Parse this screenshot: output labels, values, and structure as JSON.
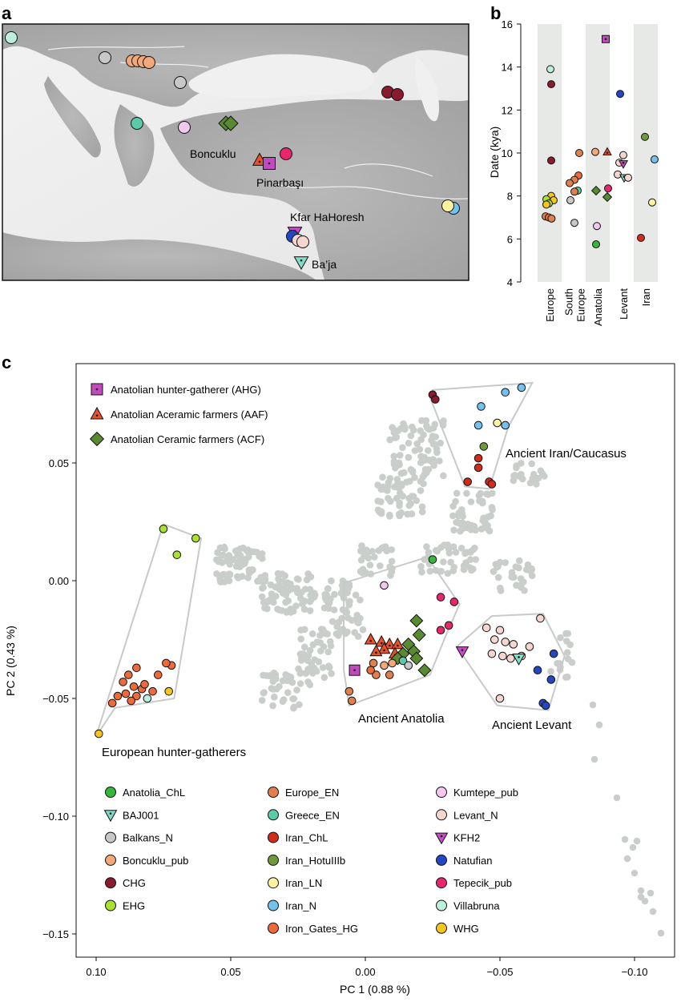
{
  "panels": {
    "a": {
      "label": "a",
      "place_labels": [
        "Boncuklu",
        "Pinarbaşı",
        "Kfar HaHoresh",
        "Ba’ja"
      ]
    },
    "b": {
      "label": "b",
      "ylabel": "Date (kya)",
      "yticks": [
        "4",
        "6",
        "8",
        "10",
        "12",
        "14",
        "16"
      ],
      "regions": [
        "Europe",
        "South Europe",
        "Anatolia",
        "Levant",
        "Iran"
      ]
    },
    "c": {
      "label": "c",
      "xlabel": "PC 1 (0.88 %)",
      "ylabel": "PC 2 (0.43 %)",
      "xticks": [
        "0.10",
        "0.05",
        "0.00",
        "−0.05",
        "−0.10"
      ],
      "yticks": [
        "0.05",
        "0.00",
        "−0.05",
        "−0.10",
        "−0.15"
      ],
      "group_labels": [
        "Ancient Iran/Caucasus",
        "Ancient Anatolia",
        "Ancient Levant",
        "European hunter-gatherers"
      ]
    }
  },
  "legend_top": [
    {
      "label": "Anatolian hunter-gatherer (AHG)",
      "shape": "square",
      "color": "#c24ac0"
    },
    {
      "label": "Anatolian Aceramic farmers (AAF)",
      "shape": "triangle",
      "color": "#e8512a"
    },
    {
      "label": "Anatolian Ceramic farmers (ACF)",
      "shape": "diamond",
      "color": "#5a8a2f"
    }
  ],
  "legend_bottom": [
    {
      "label": "Anatolia_ChL",
      "color": "#35b839",
      "shape": "circle"
    },
    {
      "label": "BAJ001",
      "color": "#7fdcc6",
      "shape": "tri-down"
    },
    {
      "label": "Balkans_N",
      "color": "#c8c8c8",
      "shape": "circle"
    },
    {
      "label": "Boncuklu_pub",
      "color": "#f2a878",
      "shape": "circle"
    },
    {
      "label": "CHG",
      "color": "#8a1a2e",
      "shape": "circle"
    },
    {
      "label": "EHG",
      "color": "#a6e22e",
      "shape": "circle"
    },
    {
      "label": "Europe_EN",
      "color": "#e0804e",
      "shape": "circle"
    },
    {
      "label": "Greece_EN",
      "color": "#5cc9a8",
      "shape": "circle"
    },
    {
      "label": "Iran_ChL",
      "color": "#d02c1c",
      "shape": "circle"
    },
    {
      "label": "Iran_HotuIIIb",
      "color": "#6f9a3c",
      "shape": "circle"
    },
    {
      "label": "Iran_LN",
      "color": "#fff3a0",
      "shape": "circle"
    },
    {
      "label": "Iran_N",
      "color": "#72c2ee",
      "shape": "circle"
    },
    {
      "label": "Iron_Gates_HG",
      "color": "#ee6a3a",
      "shape": "circle"
    },
    {
      "label": "Kumtepe_pub",
      "color": "#f1c7ee",
      "shape": "circle"
    },
    {
      "label": "Levant_N",
      "color": "#f6d7cf",
      "shape": "circle"
    },
    {
      "label": "KFH2",
      "color": "#c94ac6",
      "shape": "tri-down"
    },
    {
      "label": "Natufian",
      "color": "#2347c2",
      "shape": "circle"
    },
    {
      "label": "Tepecik_pub",
      "color": "#e8256d",
      "shape": "circle"
    },
    {
      "label": "Villabruna",
      "color": "#bdf0dc",
      "shape": "circle"
    },
    {
      "label": "WHG",
      "color": "#f5c61c",
      "shape": "circle"
    }
  ],
  "chart_data": [
    {
      "type": "scatter",
      "title": "",
      "ylabel": "Date (kya)",
      "ylim": [
        4,
        16
      ],
      "categories": [
        "Europe",
        "South Europe",
        "Anatolia",
        "Levant",
        "Iran"
      ],
      "points": [
        {
          "region": "Europe",
          "offset": 0.05,
          "date": 13.9,
          "group": "Villabruna"
        },
        {
          "region": "Europe",
          "offset": 0.1,
          "date": 13.2,
          "group": "CHG"
        },
        {
          "region": "Europe",
          "offset": 0.1,
          "date": 9.65,
          "group": "CHG"
        },
        {
          "region": "Europe",
          "offset": 0.1,
          "date": 8.0,
          "group": "WHG"
        },
        {
          "region": "Europe",
          "offset": -0.2,
          "date": 7.85,
          "group": "EHG"
        },
        {
          "region": "Europe",
          "offset": 0.25,
          "date": 7.8,
          "group": "WHG"
        },
        {
          "region": "Europe",
          "offset": -0.05,
          "date": 7.65,
          "group": "EHG"
        },
        {
          "region": "Europe",
          "offset": -0.2,
          "date": 7.6,
          "group": "WHG"
        },
        {
          "region": "Europe",
          "offset": -0.25,
          "date": 7.05,
          "group": "Europe_EN"
        },
        {
          "region": "Europe",
          "offset": -0.05,
          "date": 7.0,
          "group": "Iron_Gates_HG"
        },
        {
          "region": "Europe",
          "offset": 0.12,
          "date": 6.95,
          "group": "Europe_EN"
        },
        {
          "region": "South Europe",
          "offset": 0.3,
          "date": 10.0,
          "group": "Europe_EN"
        },
        {
          "region": "South Europe",
          "offset": 0.25,
          "date": 8.95,
          "group": "Iron_Gates_HG"
        },
        {
          "region": "South Europe",
          "offset": 0.0,
          "date": 8.75,
          "group": "Europe_EN"
        },
        {
          "region": "South Europe",
          "offset": -0.3,
          "date": 8.6,
          "group": "Europe_EN"
        },
        {
          "region": "South Europe",
          "offset": 0.2,
          "date": 8.25,
          "group": "Greece_EN"
        },
        {
          "region": "South Europe",
          "offset": 0.0,
          "date": 8.2,
          "group": "Europe_EN"
        },
        {
          "region": "South Europe",
          "offset": -0.25,
          "date": 7.8,
          "group": "Balkans_N"
        },
        {
          "region": "South Europe",
          "offset": 0.0,
          "date": 6.75,
          "group": "Balkans_N"
        },
        {
          "region": "Anatolia",
          "offset": 0.5,
          "date": 15.3,
          "group": "AHG"
        },
        {
          "region": "Anatolia",
          "offset": -0.15,
          "date": 10.05,
          "group": "Boncuklu_pub"
        },
        {
          "region": "Anatolia",
          "offset": 0.6,
          "date": 10.05,
          "group": "AAF"
        },
        {
          "region": "Anatolia",
          "offset": 0.65,
          "date": 8.35,
          "group": "Tepecik_pub"
        },
        {
          "region": "Anatolia",
          "offset": -0.1,
          "date": 8.25,
          "group": "ACF"
        },
        {
          "region": "Anatolia",
          "offset": 0.6,
          "date": 7.95,
          "group": "ACF"
        },
        {
          "region": "Anatolia",
          "offset": -0.05,
          "date": 6.6,
          "group": "Kumtepe_pub"
        },
        {
          "region": "Anatolia",
          "offset": -0.1,
          "date": 5.75,
          "group": "Anatolia_ChL"
        },
        {
          "region": "Levant",
          "offset": -0.2,
          "date": 12.75,
          "group": "Natufian"
        },
        {
          "region": "Levant",
          "offset": 0.0,
          "date": 9.9,
          "group": "Levant_N"
        },
        {
          "region": "Levant",
          "offset": -0.25,
          "date": 9.55,
          "group": "Levant_N"
        },
        {
          "region": "Levant",
          "offset": 0.0,
          "date": 9.5,
          "group": "KFH2"
        },
        {
          "region": "Levant",
          "offset": -0.35,
          "date": 9.0,
          "group": "Levant_N"
        },
        {
          "region": "Levant",
          "offset": 0.05,
          "date": 8.85,
          "group": "BAJ001"
        },
        {
          "region": "Levant",
          "offset": 0.3,
          "date": 8.85,
          "group": "Levant_N"
        },
        {
          "region": "Iran",
          "offset": -0.05,
          "date": 10.75,
          "group": "Iran_HotuIIIb"
        },
        {
          "region": "Iran",
          "offset": 0.55,
          "date": 9.7,
          "group": "Iran_N"
        },
        {
          "region": "Iran",
          "offset": 0.4,
          "date": 7.7,
          "group": "Iran_LN"
        },
        {
          "region": "Iran",
          "offset": -0.3,
          "date": 6.05,
          "group": "Iran_ChL"
        }
      ]
    },
    {
      "type": "scatter",
      "title": "",
      "xlabel": "PC 1 (0.88 %)",
      "ylabel": "PC 2 (0.43 %)",
      "xlim": [
        0.11,
        -0.11
      ],
      "ylim": [
        -0.16,
        0.085
      ],
      "labeled_points": [
        {
          "x": -0.025,
          "y": 0.079,
          "group": "CHG"
        },
        {
          "x": -0.026,
          "y": 0.077,
          "group": "CHG"
        },
        {
          "x": -0.058,
          "y": 0.082,
          "group": "Iran_N"
        },
        {
          "x": -0.052,
          "y": 0.08,
          "group": "Iran_N"
        },
        {
          "x": -0.043,
          "y": 0.074,
          "group": "Iran_N"
        },
        {
          "x": -0.042,
          "y": 0.066,
          "group": "Iran_N"
        },
        {
          "x": -0.052,
          "y": 0.066,
          "group": "Iran_N"
        },
        {
          "x": -0.049,
          "y": 0.067,
          "group": "Iran_LN"
        },
        {
          "x": -0.044,
          "y": 0.057,
          "group": "Iran_HotuIIIb"
        },
        {
          "x": -0.042,
          "y": 0.052,
          "group": "Iran_ChL"
        },
        {
          "x": -0.042,
          "y": 0.048,
          "group": "Iran_ChL"
        },
        {
          "x": -0.038,
          "y": 0.042,
          "group": "Iran_ChL"
        },
        {
          "x": -0.046,
          "y": 0.042,
          "group": "Iran_ChL"
        },
        {
          "x": -0.047,
          "y": 0.041,
          "group": "Iran_ChL"
        },
        {
          "x": 0.075,
          "y": 0.022,
          "group": "EHG"
        },
        {
          "x": 0.063,
          "y": 0.018,
          "group": "EHG"
        },
        {
          "x": 0.07,
          "y": 0.011,
          "group": "EHG"
        },
        {
          "x": 0.099,
          "y": -0.065,
          "group": "WHG"
        },
        {
          "x": 0.073,
          "y": -0.047,
          "group": "WHG"
        },
        {
          "x": 0.081,
          "y": -0.05,
          "group": "Villabruna"
        },
        {
          "x": 0.085,
          "y": -0.037,
          "group": "Iron_Gates_HG"
        },
        {
          "x": 0.088,
          "y": -0.04,
          "group": "Iron_Gates_HG"
        },
        {
          "x": 0.09,
          "y": -0.043,
          "group": "Iron_Gates_HG"
        },
        {
          "x": 0.086,
          "y": -0.045,
          "group": "Iron_Gates_HG"
        },
        {
          "x": 0.083,
          "y": -0.046,
          "group": "Iron_Gates_HG"
        },
        {
          "x": 0.089,
          "y": -0.048,
          "group": "Iron_Gates_HG"
        },
        {
          "x": 0.092,
          "y": -0.049,
          "group": "Iron_Gates_HG"
        },
        {
          "x": 0.085,
          "y": -0.049,
          "group": "Iron_Gates_HG"
        },
        {
          "x": 0.082,
          "y": -0.044,
          "group": "Iron_Gates_HG"
        },
        {
          "x": 0.087,
          "y": -0.051,
          "group": "Iron_Gates_HG"
        },
        {
          "x": 0.094,
          "y": -0.052,
          "group": "Iron_Gates_HG"
        },
        {
          "x": 0.079,
          "y": -0.047,
          "group": "Iron_Gates_HG"
        },
        {
          "x": 0.072,
          "y": -0.036,
          "group": "Iron_Gates_HG"
        },
        {
          "x": 0.074,
          "y": -0.035,
          "group": "Iron_Gates_HG"
        },
        {
          "x": 0.077,
          "y": -0.04,
          "group": "Iron_Gates_HG"
        },
        {
          "x": -0.025,
          "y": 0.009,
          "group": "Anatolia_ChL"
        },
        {
          "x": -0.007,
          "y": -0.002,
          "group": "Kumtepe_pub"
        },
        {
          "x": -0.028,
          "y": -0.007,
          "group": "Tepecik_pub"
        },
        {
          "x": -0.033,
          "y": -0.009,
          "group": "Tepecik_pub"
        },
        {
          "x": -0.031,
          "y": -0.019,
          "group": "Tepecik_pub"
        },
        {
          "x": -0.028,
          "y": -0.021,
          "group": "Tepecik_pub"
        },
        {
          "x": 0.004,
          "y": -0.038,
          "group": "AHG"
        },
        {
          "x": -0.002,
          "y": -0.025,
          "group": "AAF"
        },
        {
          "x": -0.006,
          "y": -0.026,
          "group": "AAF"
        },
        {
          "x": -0.009,
          "y": -0.027,
          "group": "AAF"
        },
        {
          "x": -0.012,
          "y": -0.027,
          "group": "AAF"
        },
        {
          "x": -0.007,
          "y": -0.029,
          "group": "AAF"
        },
        {
          "x": -0.011,
          "y": -0.031,
          "group": "AAF"
        },
        {
          "x": -0.004,
          "y": -0.03,
          "group": "AAF"
        },
        {
          "x": -0.019,
          "y": -0.017,
          "group": "ACF"
        },
        {
          "x": -0.02,
          "y": -0.023,
          "group": "ACF"
        },
        {
          "x": -0.016,
          "y": -0.027,
          "group": "ACF"
        },
        {
          "x": -0.018,
          "y": -0.03,
          "group": "ACF"
        },
        {
          "x": -0.014,
          "y": -0.031,
          "group": "ACF"
        },
        {
          "x": -0.019,
          "y": -0.033,
          "group": "ACF"
        },
        {
          "x": -0.022,
          "y": -0.038,
          "group": "ACF"
        },
        {
          "x": -0.012,
          "y": -0.033,
          "group": "ACF"
        },
        {
          "x": 0.006,
          "y": -0.047,
          "group": "Europe_EN"
        },
        {
          "x": 0.005,
          "y": -0.051,
          "group": "Europe_EN"
        },
        {
          "x": -0.003,
          "y": -0.035,
          "group": "Europe_EN"
        },
        {
          "x": -0.007,
          "y": -0.036,
          "group": "Boncuklu_pub"
        },
        {
          "x": -0.01,
          "y": -0.035,
          "group": "Boncuklu_pub"
        },
        {
          "x": -0.014,
          "y": -0.034,
          "group": "Greece_EN"
        },
        {
          "x": -0.004,
          "y": -0.04,
          "group": "Europe_EN"
        },
        {
          "x": -0.009,
          "y": -0.04,
          "group": "Europe_EN"
        },
        {
          "x": -0.002,
          "y": -0.038,
          "group": "Iron_Gates_HG"
        },
        {
          "x": -0.016,
          "y": -0.036,
          "group": "Balkans_N"
        },
        {
          "x": -0.065,
          "y": -0.016,
          "group": "Levant_N"
        },
        {
          "x": -0.045,
          "y": -0.02,
          "group": "Levant_N"
        },
        {
          "x": -0.05,
          "y": -0.021,
          "group": "Levant_N"
        },
        {
          "x": -0.048,
          "y": -0.025,
          "group": "Levant_N"
        },
        {
          "x": -0.052,
          "y": -0.026,
          "group": "Levant_N"
        },
        {
          "x": -0.055,
          "y": -0.027,
          "group": "Levant_N"
        },
        {
          "x": -0.061,
          "y": -0.028,
          "group": "Levant_N"
        },
        {
          "x": -0.047,
          "y": -0.031,
          "group": "Levant_N"
        },
        {
          "x": -0.051,
          "y": -0.032,
          "group": "Levant_N"
        },
        {
          "x": -0.054,
          "y": -0.033,
          "group": "Levant_N"
        },
        {
          "x": -0.058,
          "y": -0.032,
          "group": "Levant_N"
        },
        {
          "x": -0.05,
          "y": -0.05,
          "group": "Levant_N"
        },
        {
          "x": -0.057,
          "y": -0.033,
          "group": "BAJ001"
        },
        {
          "x": -0.036,
          "y": -0.03,
          "group": "KFH2"
        },
        {
          "x": -0.07,
          "y": -0.031,
          "group": "Natufian"
        },
        {
          "x": -0.064,
          "y": -0.038,
          "group": "Natufian"
        },
        {
          "x": -0.069,
          "y": -0.042,
          "group": "Natufian"
        },
        {
          "x": -0.066,
          "y": -0.052,
          "group": "Natufian"
        },
        {
          "x": -0.067,
          "y": -0.053,
          "group": "Natufian"
        }
      ]
    }
  ]
}
